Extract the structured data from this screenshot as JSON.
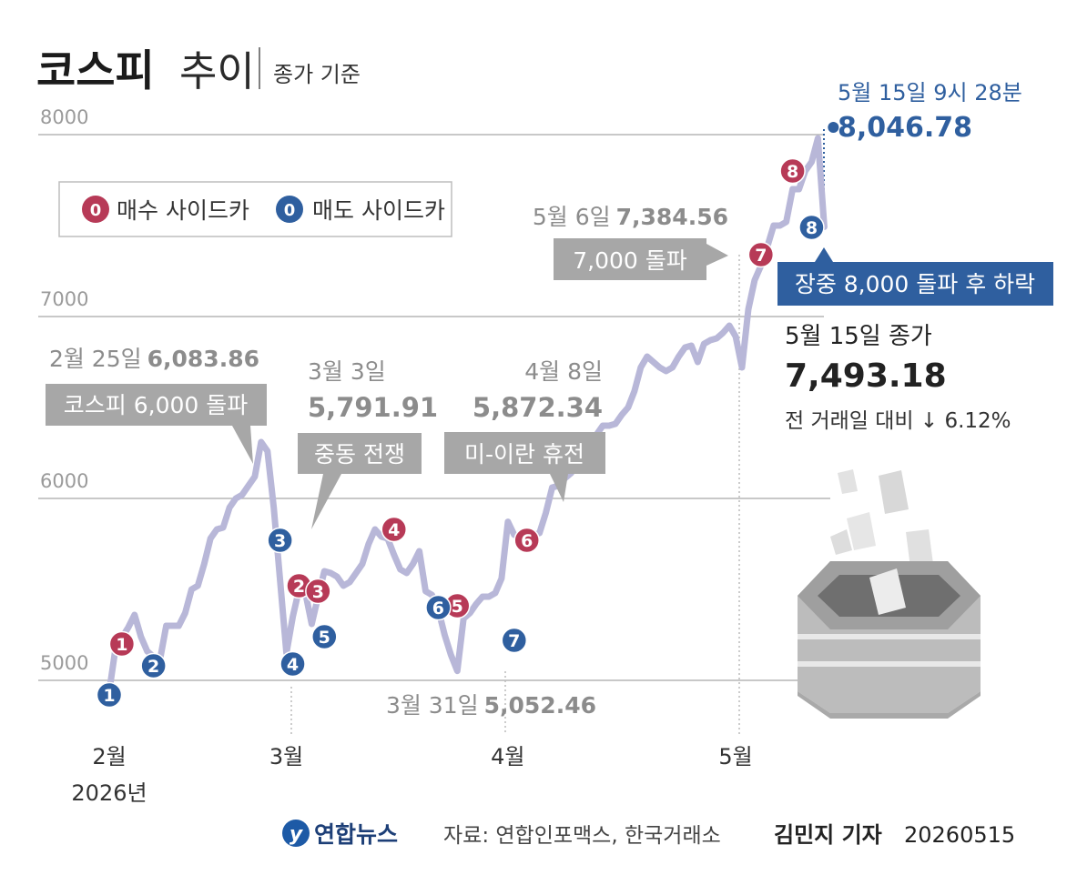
{
  "header": {
    "title_bold": "코스피",
    "title_light": "추이",
    "subtitle": "종가 기준"
  },
  "legend": {
    "buy_marker": "0",
    "buy_label": "매수 사이드카",
    "sell_marker": "0",
    "sell_label": "매도 사이드카"
  },
  "colors": {
    "line": "#b8b7d8",
    "buy": "#b73a57",
    "sell": "#2f5f9f",
    "callout_box": "#a7a7a7",
    "peak_box": "#2f5f9f",
    "grid": "#b5b5b5",
    "text_gray": "#8c8c8c",
    "text_dark": "#3b3b3b"
  },
  "annotations": {
    "feb25_date": "2월 25일",
    "feb25_value": "6,083.86",
    "feb25_box": "코스피 6,000 돌파",
    "mar3_date": "3월 3일",
    "mar3_value": "5,791.91",
    "mar3_box": "중동 전쟁",
    "apr8_date": "4월 8일",
    "apr8_value": "5,872.34",
    "apr8_box": "미-이란 휴전",
    "mar31_date": "3월 31일",
    "mar31_value": "5,052.46",
    "may6_date": "5월 6일",
    "may6_value": "7,384.56",
    "may6_box": "7,000 돌파",
    "peak_time": "5월 15일 9시 28분",
    "peak_value": "8,046.78",
    "peak_box": "장중 8,000 돌파 후 하락",
    "close_label": "5월 15일 종가",
    "close_value": "7,493.18",
    "change_text": "전 거래일 대비 ↓ 6.12%"
  },
  "footer": {
    "logo": "연합뉴스",
    "source": "자료: 연합인포맥스, 한국거래소",
    "author": "김민지 기자",
    "date": "20260515"
  },
  "chart_data": {
    "type": "line",
    "title": "코스피 추이",
    "subtitle": "종가 기준",
    "ylim": [
      5000,
      8000
    ],
    "yticks": [
      5000,
      6000,
      7000,
      8000
    ],
    "ytick_labels": [
      "5000",
      "6000",
      "7000",
      "8000"
    ],
    "xticks": [
      {
        "label": "2월",
        "sublabel": "2026년",
        "at": 0
      },
      {
        "label": "3월",
        "at": 28
      },
      {
        "label": "4월",
        "at": 63
      },
      {
        "label": "5월",
        "at": 99
      }
    ],
    "series": [
      {
        "x": [
          0,
          1,
          3,
          4,
          5,
          6,
          7,
          8,
          9,
          10,
          11,
          12,
          13,
          14,
          15,
          16,
          17,
          18,
          19,
          20,
          21,
          22,
          23,
          24,
          25,
          26,
          28,
          29,
          30,
          31,
          32,
          33,
          34,
          35,
          36,
          37,
          38,
          39,
          40,
          41,
          42,
          43,
          44,
          45,
          46,
          47,
          48,
          49,
          50,
          51,
          52,
          53,
          54,
          55,
          56,
          57,
          58,
          59,
          60,
          61,
          62,
          63,
          64,
          65,
          66,
          67,
          68,
          69,
          70,
          71,
          72,
          73,
          74,
          75,
          76,
          77,
          78,
          79,
          80,
          81,
          82,
          83,
          84,
          85,
          86,
          87,
          88,
          89,
          90,
          91,
          92,
          93,
          94,
          95,
          96,
          97,
          98,
          99,
          100,
          101,
          102,
          103,
          104,
          105,
          106,
          107,
          108,
          109,
          110,
          111,
          112,
          113
        ],
        "values": [
          4940,
          5180,
          5290,
          5360,
          5240,
          5160,
          5130,
          5110,
          5300,
          5300,
          5300,
          5370,
          5500,
          5520,
          5640,
          5780,
          5830,
          5840,
          5950,
          6000,
          6020,
          6070,
          6120,
          6310,
          6260,
          5950,
          5150,
          5350,
          5500,
          5480,
          5310,
          5460,
          5600,
          5590,
          5570,
          5520,
          5540,
          5590,
          5640,
          5750,
          5830,
          5790,
          5780,
          5690,
          5610,
          5590,
          5640,
          5710,
          5490,
          5470,
          5390,
          5250,
          5140,
          5052,
          5340,
          5370,
          5420,
          5460,
          5460,
          5480,
          5560,
          5872,
          5800,
          5790,
          5820,
          5800,
          5810,
          5920,
          6060,
          6070,
          6110,
          6140,
          6200,
          6220,
          6260,
          6350,
          6400,
          6400,
          6410,
          6460,
          6500,
          6590,
          6720,
          6780,
          6750,
          6720,
          6700,
          6720,
          6780,
          6830,
          6840,
          6750,
          6850,
          6870,
          6880,
          6910,
          6950,
          6890,
          6720,
          7040,
          7200,
          7280,
          7384,
          7500,
          7500,
          7520,
          7700,
          7700,
          7800,
          7850,
          7980,
          7493
        ]
      }
    ],
    "buy_sidecars": [
      {
        "label": "1",
        "x": 2,
        "y": 5200
      },
      {
        "label": "2",
        "x": 30,
        "y": 5520
      },
      {
        "label": "3",
        "x": 33,
        "y": 5490
      },
      {
        "label": "4",
        "x": 45,
        "y": 5830
      },
      {
        "label": "5",
        "x": 55,
        "y": 5410
      },
      {
        "label": "6",
        "x": 66,
        "y": 5770
      },
      {
        "label": "7",
        "x": 103,
        "y": 7340
      },
      {
        "label": "8",
        "x": 108,
        "y": 7800
      }
    ],
    "sell_sidecars": [
      {
        "label": "1",
        "x": 0,
        "y": 4920
      },
      {
        "label": "2",
        "x": 7,
        "y": 5080
      },
      {
        "label": "3",
        "x": 27,
        "y": 5770
      },
      {
        "label": "4",
        "x": 29,
        "y": 5090
      },
      {
        "label": "5",
        "x": 34,
        "y": 5240
      },
      {
        "label": "6",
        "x": 52,
        "y": 5400
      },
      {
        "label": "7",
        "x": 64,
        "y": 5220
      },
      {
        "label": "8",
        "x": 111,
        "y": 7490
      }
    ],
    "intraday_high": {
      "x": 113,
      "y": 8046.78
    }
  }
}
